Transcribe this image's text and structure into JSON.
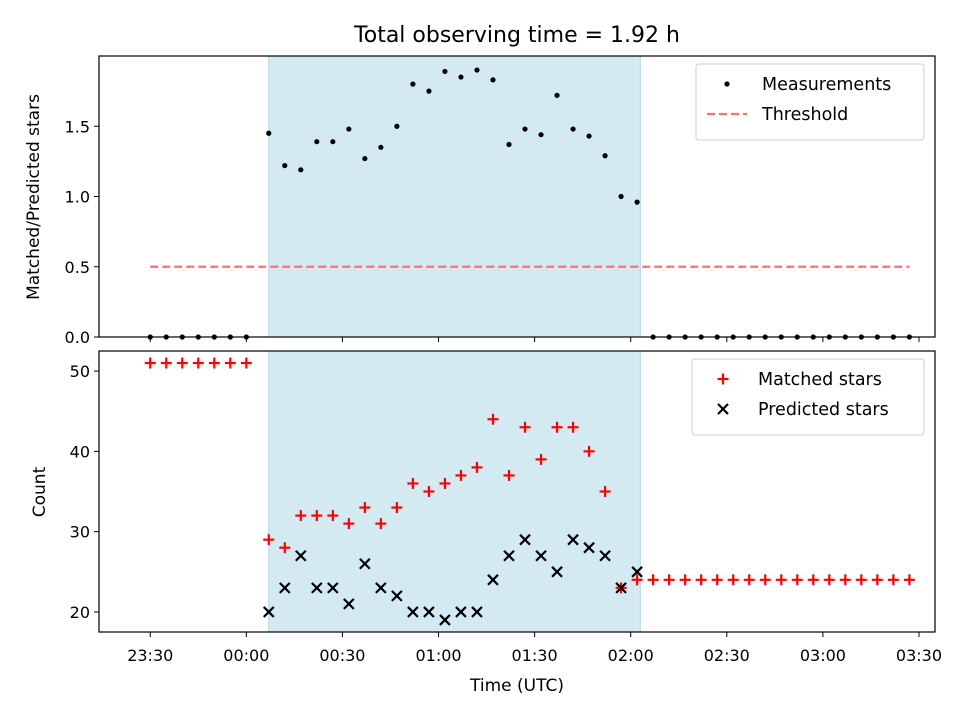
{
  "chart_data": [
    {
      "type": "scatter",
      "title": "Total observing time = 1.92 h",
      "xlabel": "",
      "ylabel": "Matched/Predicted stars",
      "ylim": [
        0,
        2.0
      ],
      "yticks": [
        "0.0",
        "0.5",
        "1.0",
        "1.5"
      ],
      "xlim": [
        "23:14",
        "03:35"
      ],
      "grid": false,
      "legend_position": "top-right",
      "shaded_region": {
        "start": "00:07",
        "end": "02:03",
        "color": "#add8e6"
      },
      "series": [
        {
          "name": "Measurements",
          "kind": "scatter",
          "color": "#000000",
          "x": [
            "23:30",
            "23:35",
            "23:40",
            "23:45",
            "23:50",
            "23:55",
            "00:00",
            "00:07",
            "00:12",
            "00:17",
            "00:22",
            "00:27",
            "00:32",
            "00:37",
            "00:42",
            "00:47",
            "00:52",
            "00:57",
            "01:02",
            "01:07",
            "01:12",
            "01:17",
            "01:22",
            "01:27",
            "01:32",
            "01:37",
            "01:42",
            "01:47",
            "01:52",
            "01:57",
            "02:02",
            "02:07",
            "02:12",
            "02:17",
            "02:22",
            "02:27",
            "02:32",
            "02:37",
            "02:42",
            "02:47",
            "02:52",
            "02:57",
            "03:02",
            "03:07",
            "03:12",
            "03:17",
            "03:22",
            "03:27"
          ],
          "y": [
            0,
            0,
            0,
            0,
            0,
            0,
            0,
            1.45,
            1.22,
            1.19,
            1.39,
            1.39,
            1.48,
            1.27,
            1.35,
            1.5,
            1.8,
            1.75,
            1.89,
            1.85,
            1.9,
            1.83,
            1.37,
            1.48,
            1.44,
            1.72,
            1.48,
            1.43,
            1.29,
            1.0,
            0.96,
            0,
            0,
            0,
            0,
            0,
            0,
            0,
            0,
            0,
            0,
            0,
            0,
            0,
            0,
            0,
            0,
            0
          ]
        },
        {
          "name": "Threshold",
          "kind": "dashed-line",
          "color": "#ff7070",
          "x": [
            "23:30",
            "03:27"
          ],
          "y": [
            0.5,
            0.5
          ]
        }
      ]
    },
    {
      "type": "scatter",
      "title": "",
      "xlabel": "Time (UTC)",
      "ylabel": "Count",
      "ylim": [
        17.5,
        52.5
      ],
      "yticks": [
        "20",
        "30",
        "40",
        "50"
      ],
      "xlim": [
        "23:14",
        "03:35"
      ],
      "xticks": [
        "23:30",
        "00:00",
        "00:30",
        "01:00",
        "01:30",
        "02:00",
        "02:30",
        "03:00",
        "03:30"
      ],
      "grid": false,
      "legend_position": "top-right",
      "shaded_region": {
        "start": "00:07",
        "end": "02:03",
        "color": "#add8e6"
      },
      "series": [
        {
          "name": "Matched stars",
          "kind": "plus",
          "color": "#ff0000",
          "x": [
            "23:30",
            "23:35",
            "23:40",
            "23:45",
            "23:50",
            "23:55",
            "00:00",
            "00:07",
            "00:12",
            "00:17",
            "00:22",
            "00:27",
            "00:32",
            "00:37",
            "00:42",
            "00:47",
            "00:52",
            "00:57",
            "01:02",
            "01:07",
            "01:12",
            "01:17",
            "01:22",
            "01:27",
            "01:32",
            "01:37",
            "01:42",
            "01:47",
            "01:52",
            "01:57",
            "02:02",
            "02:07",
            "02:12",
            "02:17",
            "02:22",
            "02:27",
            "02:32",
            "02:37",
            "02:42",
            "02:47",
            "02:52",
            "02:57",
            "03:02",
            "03:07",
            "03:12",
            "03:17",
            "03:22",
            "03:27"
          ],
          "y": [
            51,
            51,
            51,
            51,
            51,
            51,
            51,
            29,
            28,
            32,
            32,
            32,
            31,
            33,
            31,
            33,
            36,
            35,
            36,
            37,
            38,
            44,
            37,
            43,
            39,
            43,
            43,
            40,
            35,
            23,
            24,
            24,
            24,
            24,
            24,
            24,
            24,
            24,
            24,
            24,
            24,
            24,
            24,
            24,
            24,
            24,
            24,
            24
          ]
        },
        {
          "name": "Predicted stars",
          "kind": "x",
          "color": "#000000",
          "x": [
            "00:07",
            "00:12",
            "00:17",
            "00:22",
            "00:27",
            "00:32",
            "00:37",
            "00:42",
            "00:47",
            "00:52",
            "00:57",
            "01:02",
            "01:07",
            "01:12",
            "01:17",
            "01:22",
            "01:27",
            "01:32",
            "01:37",
            "01:42",
            "01:47",
            "01:52",
            "01:57",
            "02:02"
          ],
          "y": [
            20,
            23,
            27,
            23,
            23,
            21,
            26,
            23,
            22,
            20,
            20,
            19,
            20,
            20,
            24,
            27,
            29,
            27,
            25,
            29,
            28,
            27,
            23,
            25
          ]
        }
      ]
    }
  ]
}
